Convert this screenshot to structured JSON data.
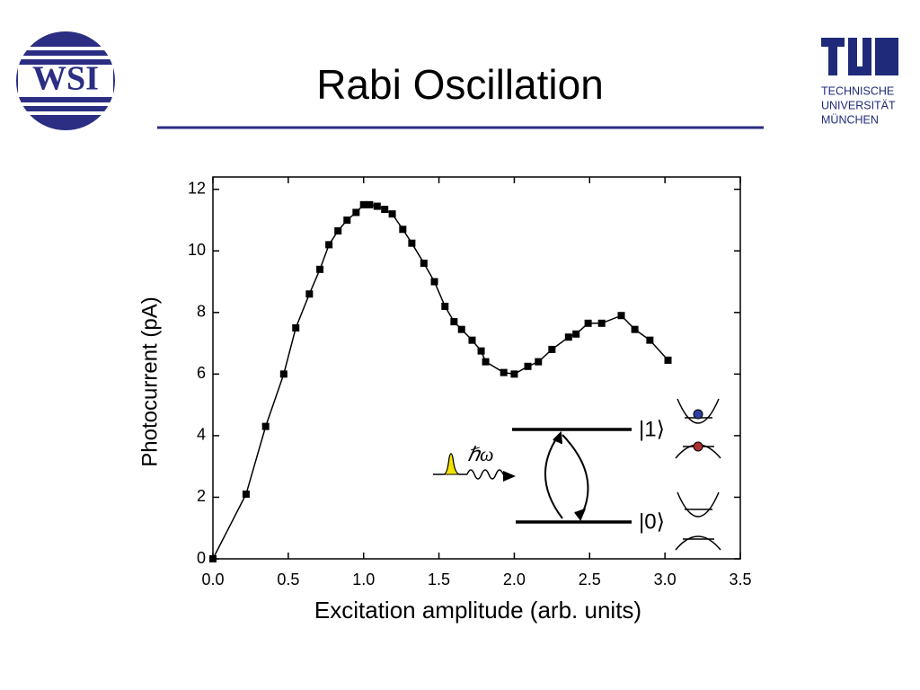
{
  "slide": {
    "title": "Rabi Oscillation"
  },
  "logos": {
    "wsi": "WSI",
    "tum": [
      "TECHNISCHE",
      "UNIVERSITÄT",
      "MÜNCHEN"
    ]
  },
  "chart_data": {
    "type": "line",
    "x_label": "Excitation amplitude (arb. units)",
    "y_label": "Photocurrent (pA)",
    "annotations": [
      "|1⟩",
      "|0⟩",
      "ℏω"
    ],
    "xlim": [
      0,
      3.5
    ],
    "xticks": [
      {
        "value": 0,
        "label": "0.0"
      },
      0.5,
      {
        "value": 1,
        "label": "1.0"
      },
      1.5,
      {
        "value": 2,
        "label": "2.0"
      },
      2.5,
      {
        "value": 3,
        "label": "3.0"
      },
      3.5
    ],
    "ylim": [
      0,
      12.4
    ],
    "yticks": [
      0,
      2,
      4,
      6,
      8,
      10,
      12
    ],
    "series": [
      {
        "color": "#000000",
        "x": [
          0,
          0.22,
          0.35,
          0.47,
          0.55,
          0.64,
          0.71,
          0.77,
          0.83,
          0.89,
          0.95,
          1.0,
          1.04,
          1.09,
          1.14,
          1.19,
          1.26,
          1.32,
          1.4,
          1.47,
          1.54,
          1.6,
          1.65,
          1.72,
          1.78,
          1.81,
          1.93,
          2.0,
          2.09,
          2.16,
          2.25,
          2.36,
          2.41,
          2.49,
          2.58,
          2.71,
          2.8,
          2.9,
          3.02
        ],
        "values": [
          0,
          2.1,
          4.3,
          6.0,
          7.5,
          8.6,
          9.4,
          10.2,
          10.65,
          11.0,
          11.25,
          11.5,
          11.5,
          11.45,
          11.35,
          11.2,
          10.7,
          10.25,
          9.6,
          9.0,
          8.2,
          7.7,
          7.45,
          7.1,
          6.75,
          6.4,
          6.05,
          6.0,
          6.25,
          6.4,
          6.8,
          7.2,
          7.3,
          7.65,
          7.65,
          7.9,
          7.45,
          7.1,
          6.45
        ]
      }
    ]
  }
}
